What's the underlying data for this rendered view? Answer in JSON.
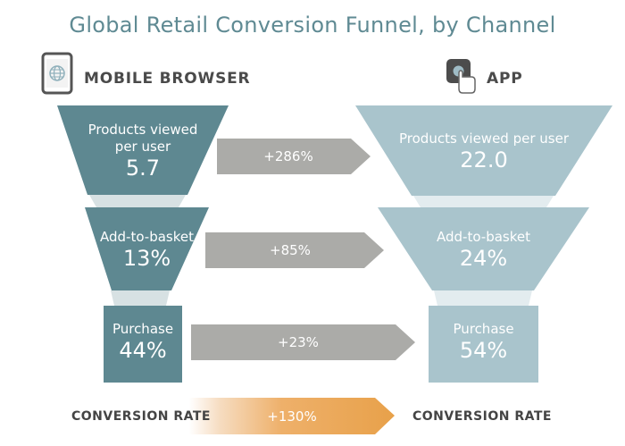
{
  "title": "Global Retail Conversion Funnel, by Channel",
  "mobile": {
    "label": "MOBILE BROWSER",
    "icon": "phone-globe-icon",
    "color": "#5e8891",
    "stages": [
      {
        "label_line1": "Products viewed",
        "label_line2": "per user",
        "value": "5.7"
      },
      {
        "label": "Add-to-basket",
        "value": "13%"
      },
      {
        "label": "Purchase",
        "value": "44%"
      }
    ]
  },
  "app": {
    "label": "APP",
    "icon": "app-tap-icon",
    "color": "#a9c4cc",
    "stages": [
      {
        "label": "Products viewed per user",
        "value": "22.0"
      },
      {
        "label": "Add-to-basket",
        "value": "24%"
      },
      {
        "label": "Purchase",
        "value": "54%"
      }
    ]
  },
  "arrows": [
    "+286%",
    "+85%",
    "+23%"
  ],
  "conversion": {
    "left_label": "CONVERSION RATE",
    "right_label": "CONVERSION RATE",
    "value": "+130%",
    "color": "#e8a14a"
  }
}
